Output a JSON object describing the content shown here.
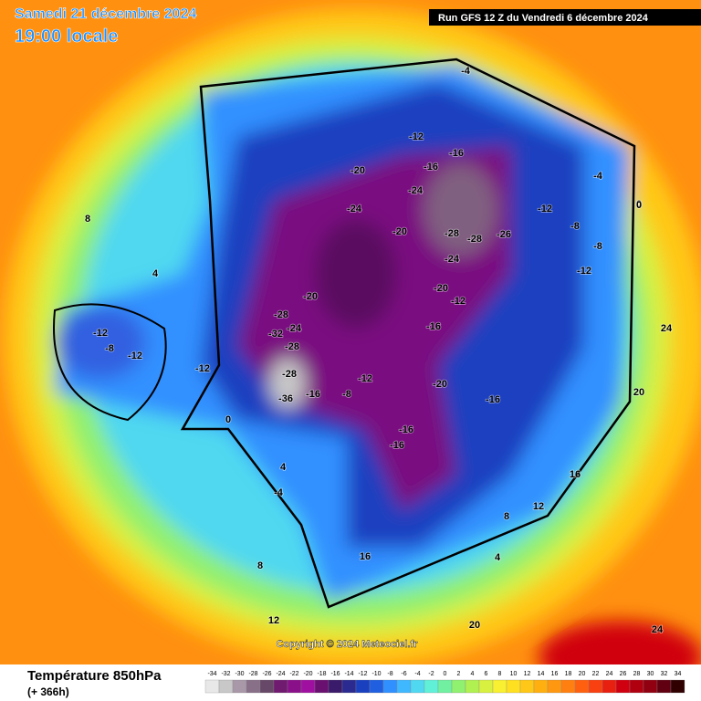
{
  "header": {
    "date": "Samedi 21 décembre 2024",
    "time": "19:00 locale",
    "run": "Run GFS 12 Z du Vendredi 6 décembre 2024"
  },
  "footer": {
    "field": "Température 850hPa",
    "lead": "(+ 366h)",
    "copyright": "Copyright © 2024 Meteociel.fr"
  },
  "legend": {
    "ticks": [
      -34,
      -32,
      -30,
      -28,
      -26,
      -24,
      -22,
      -20,
      -18,
      -16,
      -14,
      -12,
      -10,
      -8,
      -6,
      -4,
      -2,
      0,
      2,
      4,
      6,
      8,
      10,
      12,
      14,
      16,
      18,
      20,
      22,
      24,
      26,
      28,
      30,
      32,
      34
    ],
    "colors": [
      "#e8e8e8",
      "#c8c8c8",
      "#a898a8",
      "#887088",
      "#684868",
      "#701a70",
      "#8a108a",
      "#a010a0",
      "#6a1070",
      "#3a1a6a",
      "#2a2a90",
      "#1a40c0",
      "#2060e0",
      "#3090ff",
      "#40b8ff",
      "#50d8f0",
      "#60f0d8",
      "#70f0a0",
      "#90f070",
      "#b0f050",
      "#d8f040",
      "#f8f030",
      "#ffe020",
      "#ffc818",
      "#ffb010",
      "#ff9810",
      "#ff8010",
      "#ff6010",
      "#f84010",
      "#e82010",
      "#d00010",
      "#b00010",
      "#900010",
      "#600010",
      "#300000"
    ]
  },
  "map_labels": [
    -12,
    -8,
    -12,
    -12,
    -20,
    -24,
    -20,
    -16,
    -16,
    -24,
    -28,
    -28,
    -26,
    -20,
    -24,
    -20,
    -12,
    -16,
    -16,
    -20,
    -28,
    -24,
    -32,
    -28,
    -28,
    -36,
    -16,
    -12,
    -8,
    -16,
    -16,
    -12,
    -12,
    -8,
    -4,
    0,
    4,
    8,
    12,
    16,
    20,
    24,
    0,
    -4,
    4,
    8,
    12,
    16,
    20,
    24,
    -4,
    -8,
    -12,
    0,
    4,
    8
  ]
}
